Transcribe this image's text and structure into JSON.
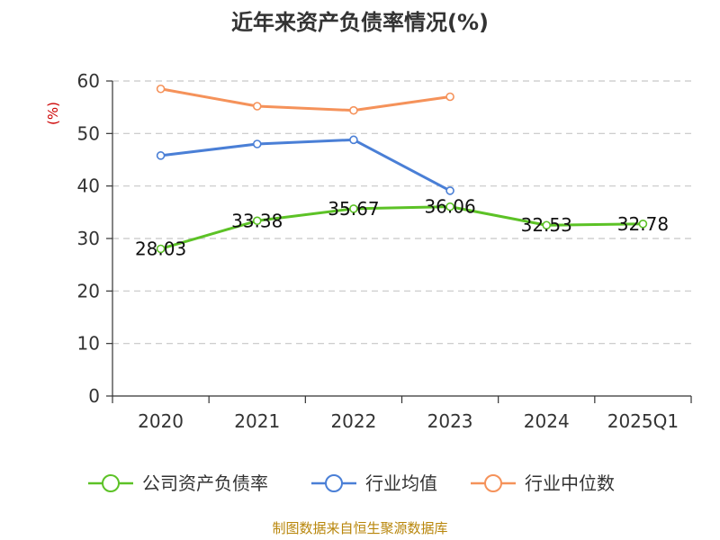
{
  "chart_data": {
    "type": "line",
    "title": "近年来资产负债率情况(%)",
    "ylabel": "(%)",
    "xlabel": "",
    "categories": [
      "2020",
      "2021",
      "2022",
      "2023",
      "2024",
      "2025Q1"
    ],
    "ylim": [
      0,
      60
    ],
    "yticks": [
      0,
      10,
      20,
      30,
      40,
      50,
      60
    ],
    "grid": true,
    "legend_position": "bottom",
    "series": [
      {
        "name": "公司资产负债率",
        "color": "#5cc226",
        "values": [
          28.03,
          33.38,
          35.67,
          36.06,
          32.53,
          32.78
        ],
        "labels": [
          "28.03",
          "33.38",
          "35.67",
          "36.06",
          "32.53",
          "32.78"
        ]
      },
      {
        "name": "行业均值",
        "color": "#4a7fd6",
        "values": [
          45.8,
          48.0,
          48.8,
          39.1,
          null,
          null
        ]
      },
      {
        "name": "行业中位数",
        "color": "#f5925a",
        "values": [
          58.5,
          55.2,
          54.4,
          57.0,
          null,
          null
        ]
      }
    ]
  },
  "source": "制图数据来自恒生聚源数据库"
}
